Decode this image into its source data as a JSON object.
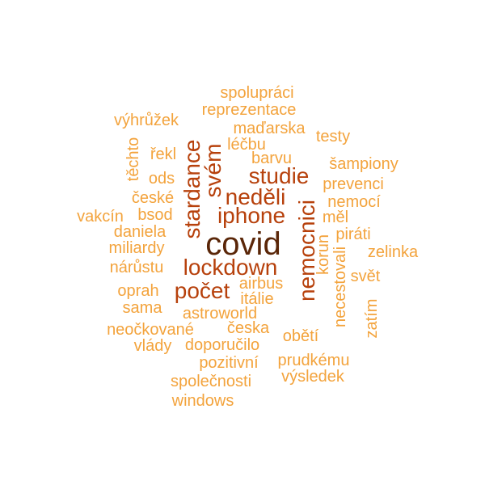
{
  "palette": {
    "t1": "#f3a33c",
    "t2": "#ee8a28",
    "t3": "#d8640f",
    "t4": "#b7410c",
    "t5": "#8a3a0a",
    "t6": "#5a2608"
  },
  "words": [
    {
      "text": "covid",
      "tier": "t6"
    },
    {
      "text": "nemocnici",
      "tier": "t4"
    },
    {
      "text": "lockdown",
      "tier": "t4"
    },
    {
      "text": "neděli",
      "tier": "t4"
    },
    {
      "text": "studie",
      "tier": "t4"
    },
    {
      "text": "iphone",
      "tier": "t4"
    },
    {
      "text": "stardance",
      "tier": "t4"
    },
    {
      "text": "svém",
      "tier": "t4"
    },
    {
      "text": "počet",
      "tier": "t4"
    },
    {
      "text": "spolupráci",
      "tier": "t1"
    },
    {
      "text": "reprezentace",
      "tier": "t1"
    },
    {
      "text": "výhrůžek",
      "tier": "t1"
    },
    {
      "text": "maďarska",
      "tier": "t1"
    },
    {
      "text": "testy",
      "tier": "t1"
    },
    {
      "text": "léčbu",
      "tier": "t1"
    },
    {
      "text": "řekl",
      "tier": "t1"
    },
    {
      "text": "barvu",
      "tier": "t1"
    },
    {
      "text": "šampiony",
      "tier": "t1"
    },
    {
      "text": "těchto",
      "tier": "t1"
    },
    {
      "text": "ods",
      "tier": "t1"
    },
    {
      "text": "prevenci",
      "tier": "t1"
    },
    {
      "text": "české",
      "tier": "t1"
    },
    {
      "text": "nemocí",
      "tier": "t1"
    },
    {
      "text": "vakcín",
      "tier": "t1"
    },
    {
      "text": "bsod",
      "tier": "t1"
    },
    {
      "text": "měl",
      "tier": "t1"
    },
    {
      "text": "daniela",
      "tier": "t1"
    },
    {
      "text": "piráti",
      "tier": "t1"
    },
    {
      "text": "miliardy",
      "tier": "t1"
    },
    {
      "text": "korun",
      "tier": "t1"
    },
    {
      "text": "zelinka",
      "tier": "t1"
    },
    {
      "text": "nárůstu",
      "tier": "t1"
    },
    {
      "text": "svět",
      "tier": "t1"
    },
    {
      "text": "necestovali",
      "tier": "t1"
    },
    {
      "text": "airbus",
      "tier": "t1"
    },
    {
      "text": "oprah",
      "tier": "t1"
    },
    {
      "text": "itálie",
      "tier": "t1"
    },
    {
      "text": "sama",
      "tier": "t1"
    },
    {
      "text": "astroworld",
      "tier": "t1"
    },
    {
      "text": "zatím",
      "tier": "t1"
    },
    {
      "text": "neočkované",
      "tier": "t1"
    },
    {
      "text": "česka",
      "tier": "t1"
    },
    {
      "text": "obětí",
      "tier": "t1"
    },
    {
      "text": "vlády",
      "tier": "t1"
    },
    {
      "text": "doporučilo",
      "tier": "t1"
    },
    {
      "text": "pozitivní",
      "tier": "t1"
    },
    {
      "text": "prudkému",
      "tier": "t1"
    },
    {
      "text": "výsledek",
      "tier": "t1"
    },
    {
      "text": "společnosti",
      "tier": "t1"
    },
    {
      "text": "windows",
      "tier": "t1"
    }
  ]
}
